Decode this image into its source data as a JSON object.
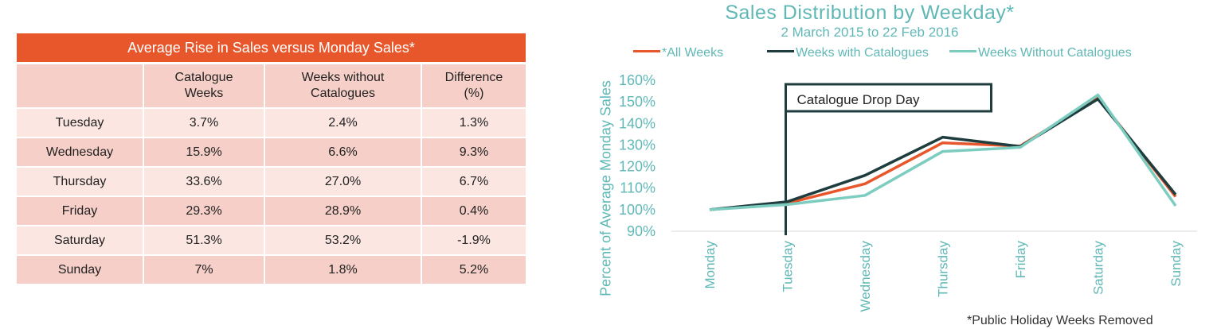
{
  "table": {
    "title": "Average Rise in Sales versus Monday Sales*",
    "headers": [
      {
        "line1": "",
        "line2": ""
      },
      {
        "line1": "Catalogue",
        "line2": "Weeks"
      },
      {
        "line1": "Weeks without",
        "line2": "Catalogues"
      },
      {
        "line1": "Difference",
        "line2": "(%)"
      }
    ],
    "rows": [
      {
        "day": "Tuesday",
        "catalogue": "3.7%",
        "without": "2.4%",
        "diff": "1.3%"
      },
      {
        "day": "Wednesday",
        "catalogue": "15.9%",
        "without": "6.6%",
        "diff": "9.3%"
      },
      {
        "day": "Thursday",
        "catalogue": "33.6%",
        "without": "27.0%",
        "diff": "6.7%"
      },
      {
        "day": "Friday",
        "catalogue": "29.3%",
        "without": "28.9%",
        "diff": "0.4%"
      },
      {
        "day": "Saturday",
        "catalogue": "51.3%",
        "without": "53.2%",
        "diff": "-1.9%"
      },
      {
        "day": "Sunday",
        "catalogue": "7%",
        "without": "1.8%",
        "diff": "5.2%"
      }
    ]
  },
  "chart_data": {
    "type": "line",
    "title": "Sales Distribution by Weekday*",
    "subtitle": "2 March 2015 to 22 Feb 2016",
    "ylabel": "Percent of Average Monday Sales",
    "xlabel": "",
    "categories": [
      "Monday",
      "Tuesday",
      "Wednesday",
      "Thursday",
      "Friday",
      "Saturday",
      "Sunday"
    ],
    "ylim": [
      90,
      160
    ],
    "yticks": [
      90,
      100,
      110,
      120,
      130,
      140,
      150,
      160
    ],
    "ytick_labels": [
      "90%",
      "100%",
      "110%",
      "120%",
      "130%",
      "140%",
      "150%",
      "160%"
    ],
    "legend_position": "top",
    "series": [
      {
        "name": "*All Weeks",
        "color": "#e8572b",
        "values": [
          100,
          103,
          112,
          131,
          129.5,
          152,
          106
        ]
      },
      {
        "name": "Weeks with Catalogues",
        "color": "#1f3d3e",
        "values": [
          100,
          103.7,
          115.9,
          133.6,
          129.3,
          151.3,
          107
        ]
      },
      {
        "name": "Weeks Without Catalogues",
        "color": "#7ccdc0",
        "values": [
          100,
          102.4,
          106.6,
          127,
          128.9,
          153.2,
          101.8
        ]
      }
    ],
    "annotation": {
      "text": "Catalogue Drop Day",
      "category": "Tuesday"
    },
    "footnote": "*Public Holiday Weeks Removed"
  },
  "colors": {
    "accent_orange": "#e8572b",
    "teal_text": "#5fb8b6",
    "dark_teal": "#1f3d3e",
    "light_teal": "#7ccdc0",
    "row_light": "#fbe6e2",
    "row_dark": "#f6cfc8"
  }
}
